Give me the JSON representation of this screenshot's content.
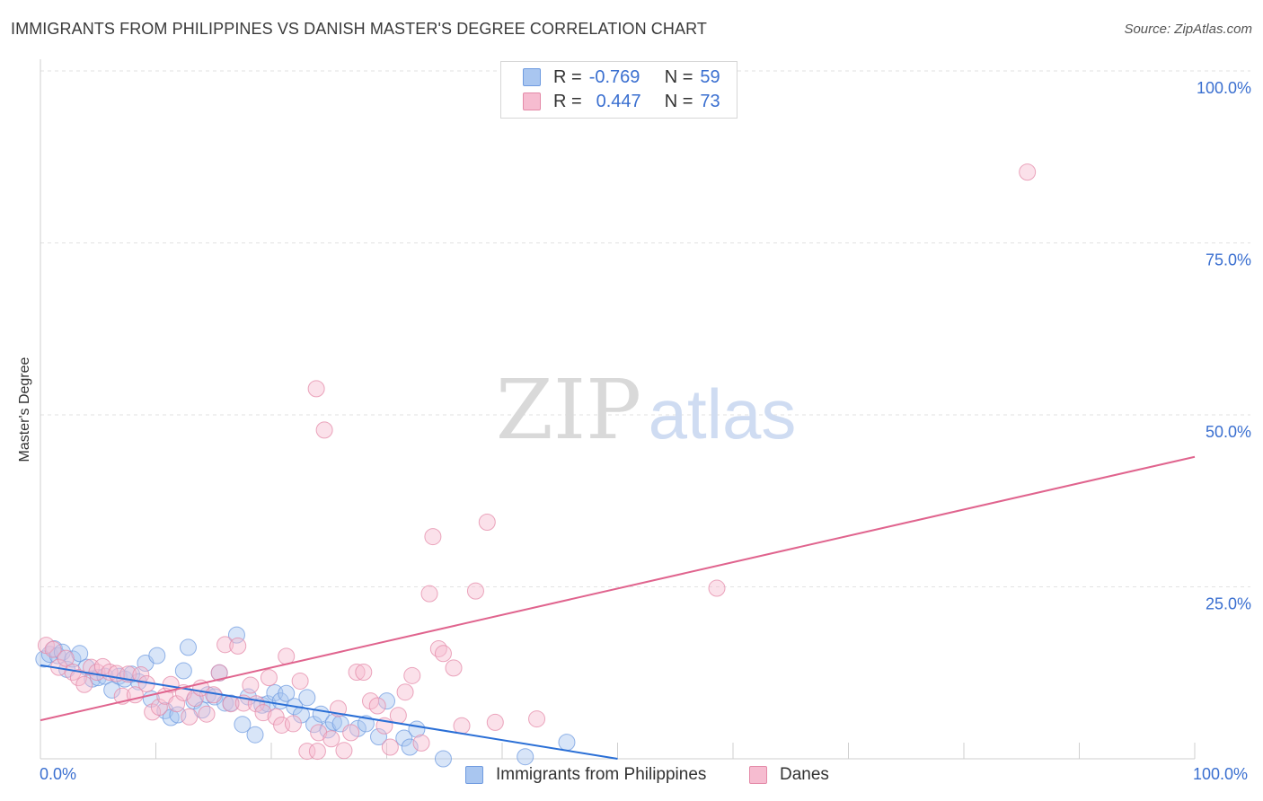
{
  "title": "IMMIGRANTS FROM PHILIPPINES VS DANISH MASTER'S DEGREE CORRELATION CHART",
  "source": "Source: ZipAtlas.com",
  "watermark": {
    "zip": "ZIP",
    "atlas": "atlas"
  },
  "legend": {
    "rows": [
      {
        "r_label": "R =",
        "r_value": "-0.769",
        "n_label": "N =",
        "n_value": "59",
        "color": "#a9c6f0",
        "border": "#6f9be0"
      },
      {
        "r_label": "R =",
        "r_value": "0.447",
        "n_label": "N =",
        "n_value": "73",
        "color": "#f6bcd0",
        "border": "#e48aa8"
      }
    ]
  },
  "bottom_legend": [
    {
      "label": "Immigrants from Philippines",
      "color": "#a9c6f0",
      "border": "#6f9be0"
    },
    {
      "label": "Danes",
      "color": "#f6bcd0",
      "border": "#e48aa8"
    }
  ],
  "x_axis_labels": {
    "left": "0.0%",
    "right": "100.0%"
  },
  "chart_data": {
    "type": "scatter",
    "title": "IMMIGRANTS FROM PHILIPPINES VS DANISH MASTER'S DEGREE CORRELATION CHART",
    "xlabel": "",
    "ylabel": "Master's Degree",
    "xlim": [
      0,
      100
    ],
    "ylim": [
      0,
      100
    ],
    "y_ticks": [
      {
        "value": 25,
        "label": "25.0%"
      },
      {
        "value": 50,
        "label": "50.0%"
      },
      {
        "value": 75,
        "label": "75.0%"
      },
      {
        "value": 100,
        "label": "100.0%"
      }
    ],
    "x_ticks": [
      0,
      10,
      20,
      30,
      40,
      50,
      60,
      70,
      80,
      90,
      100
    ],
    "grid": true,
    "series": [
      {
        "name": "Immigrants from Philippines",
        "color": "#6f9be0",
        "fill": "#a9c6f0",
        "trend": {
          "x": [
            0,
            50
          ],
          "y": [
            13.6,
            0
          ]
        },
        "points": [
          [
            0.3,
            14.5
          ],
          [
            0.8,
            15.2
          ],
          [
            1.2,
            16.0
          ],
          [
            1.5,
            15.0
          ],
          [
            1.9,
            15.5
          ],
          [
            2.3,
            13.0
          ],
          [
            2.8,
            14.5
          ],
          [
            3.4,
            15.3
          ],
          [
            4.0,
            13.3
          ],
          [
            4.5,
            11.6
          ],
          [
            5.0,
            11.8
          ],
          [
            5.6,
            12.0
          ],
          [
            6.2,
            10.0
          ],
          [
            6.8,
            12.0
          ],
          [
            7.3,
            11.6
          ],
          [
            7.9,
            12.3
          ],
          [
            8.5,
            11.2
          ],
          [
            9.1,
            13.9
          ],
          [
            9.6,
            8.7
          ],
          [
            10.1,
            15.0
          ],
          [
            10.8,
            7.0
          ],
          [
            11.3,
            6.0
          ],
          [
            11.9,
            6.4
          ],
          [
            12.4,
            12.8
          ],
          [
            12.8,
            16.2
          ],
          [
            13.3,
            8.4
          ],
          [
            14.0,
            7.1
          ],
          [
            14.5,
            9.3
          ],
          [
            15.1,
            9.0
          ],
          [
            15.5,
            12.5
          ],
          [
            16.0,
            8.1
          ],
          [
            16.5,
            8.1
          ],
          [
            17.0,
            18.0
          ],
          [
            17.5,
            5.0
          ],
          [
            18.0,
            9.0
          ],
          [
            18.6,
            3.5
          ],
          [
            19.2,
            7.8
          ],
          [
            19.7,
            8.0
          ],
          [
            20.3,
            9.6
          ],
          [
            20.8,
            8.4
          ],
          [
            21.3,
            9.5
          ],
          [
            22.0,
            7.6
          ],
          [
            22.6,
            6.4
          ],
          [
            23.1,
            8.9
          ],
          [
            23.7,
            5.0
          ],
          [
            24.3,
            6.5
          ],
          [
            24.9,
            4.2
          ],
          [
            25.4,
            5.3
          ],
          [
            26.0,
            5.1
          ],
          [
            27.5,
            4.4
          ],
          [
            28.2,
            5.1
          ],
          [
            29.3,
            3.2
          ],
          [
            30.0,
            8.4
          ],
          [
            31.5,
            3.0
          ],
          [
            32.0,
            1.7
          ],
          [
            32.6,
            4.3
          ],
          [
            34.9,
            0.0
          ],
          [
            45.6,
            2.4
          ],
          [
            42.0,
            0.3
          ]
        ]
      },
      {
        "name": "Danes",
        "color": "#e48aa8",
        "fill": "#f6bcd0",
        "trend": {
          "x": [
            0,
            100
          ],
          "y": [
            5.6,
            43.9
          ]
        },
        "points": [
          [
            0.5,
            16.5
          ],
          [
            1.1,
            15.9
          ],
          [
            1.6,
            13.3
          ],
          [
            2.2,
            14.6
          ],
          [
            2.8,
            12.6
          ],
          [
            3.3,
            11.8
          ],
          [
            3.8,
            10.8
          ],
          [
            4.4,
            13.3
          ],
          [
            4.9,
            12.6
          ],
          [
            5.4,
            13.4
          ],
          [
            6.0,
            12.6
          ],
          [
            6.6,
            12.4
          ],
          [
            7.1,
            9.1
          ],
          [
            7.6,
            12.3
          ],
          [
            8.2,
            9.3
          ],
          [
            8.7,
            12.2
          ],
          [
            9.2,
            10.9
          ],
          [
            9.7,
            6.8
          ],
          [
            10.3,
            7.5
          ],
          [
            10.8,
            9.1
          ],
          [
            11.3,
            10.8
          ],
          [
            11.8,
            8.0
          ],
          [
            12.4,
            9.6
          ],
          [
            12.9,
            6.1
          ],
          [
            13.4,
            8.8
          ],
          [
            13.9,
            10.3
          ],
          [
            14.4,
            6.5
          ],
          [
            15.0,
            9.3
          ],
          [
            15.5,
            12.5
          ],
          [
            16.0,
            16.6
          ],
          [
            16.5,
            8.0
          ],
          [
            17.1,
            16.4
          ],
          [
            17.6,
            8.1
          ],
          [
            18.2,
            10.7
          ],
          [
            18.7,
            8.0
          ],
          [
            19.3,
            6.7
          ],
          [
            19.8,
            11.8
          ],
          [
            20.4,
            6.1
          ],
          [
            20.9,
            4.9
          ],
          [
            21.3,
            14.9
          ],
          [
            21.9,
            5.1
          ],
          [
            22.5,
            11.3
          ],
          [
            23.1,
            1.1
          ],
          [
            24.0,
            1.1
          ],
          [
            24.6,
            47.8
          ],
          [
            24.1,
            3.8
          ],
          [
            25.2,
            2.9
          ],
          [
            25.8,
            7.3
          ],
          [
            26.3,
            1.2
          ],
          [
            26.9,
            3.8
          ],
          [
            27.4,
            12.6
          ],
          [
            28.0,
            12.6
          ],
          [
            28.6,
            8.4
          ],
          [
            29.2,
            7.7
          ],
          [
            29.8,
            4.8
          ],
          [
            30.3,
            1.7
          ],
          [
            31.0,
            6.3
          ],
          [
            31.6,
            9.7
          ],
          [
            32.2,
            12.1
          ],
          [
            33.0,
            2.3
          ],
          [
            34.0,
            32.3
          ],
          [
            33.7,
            24.0
          ],
          [
            34.5,
            16.0
          ],
          [
            34.9,
            15.3
          ],
          [
            35.8,
            13.2
          ],
          [
            36.5,
            4.8
          ],
          [
            37.7,
            24.4
          ],
          [
            38.7,
            34.4
          ],
          [
            39.4,
            5.3
          ],
          [
            43.0,
            5.8
          ],
          [
            58.6,
            24.8
          ],
          [
            85.5,
            85.3
          ],
          [
            23.9,
            53.8
          ]
        ]
      }
    ]
  }
}
